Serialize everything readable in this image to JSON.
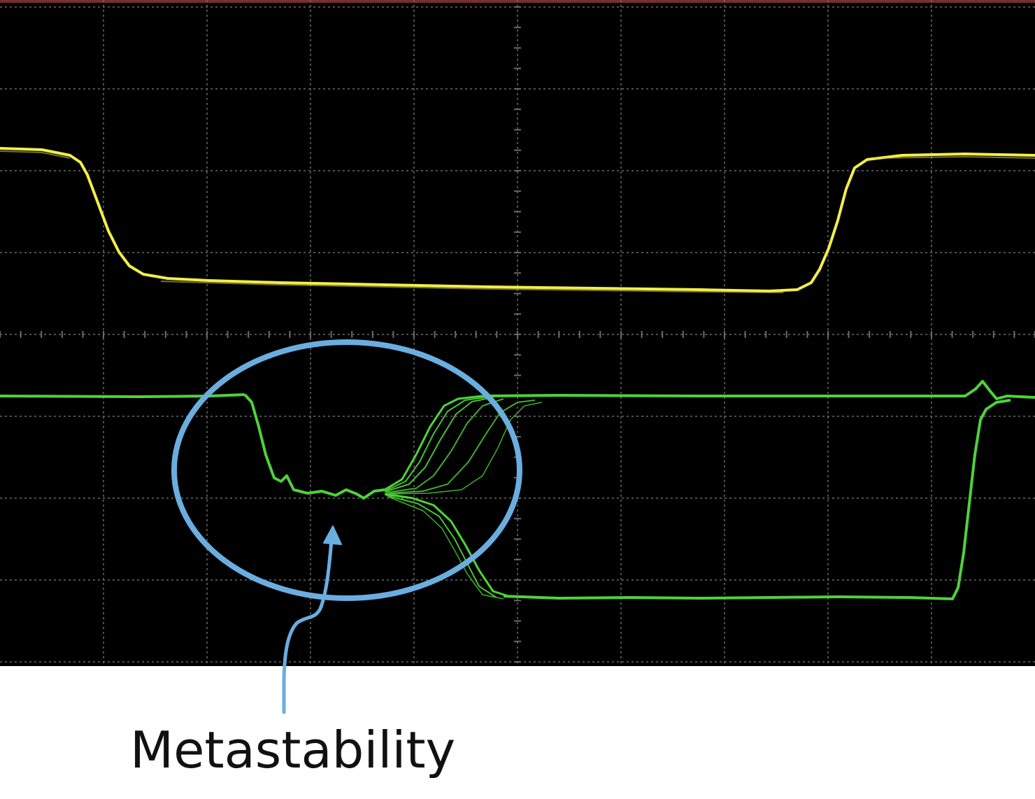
{
  "caption": "Metastability",
  "colors": {
    "background": "#000000",
    "grid": "#6b6b6b",
    "trace_yellow": "#f2ee4a",
    "trace_green": "#4fd23a",
    "annotation": "#6aaee0",
    "top_border": "#7a2e2e"
  },
  "icons": {
    "annotation_ellipse": "ellipse-outline",
    "annotation_arrow": "curved-arrow-up"
  }
}
